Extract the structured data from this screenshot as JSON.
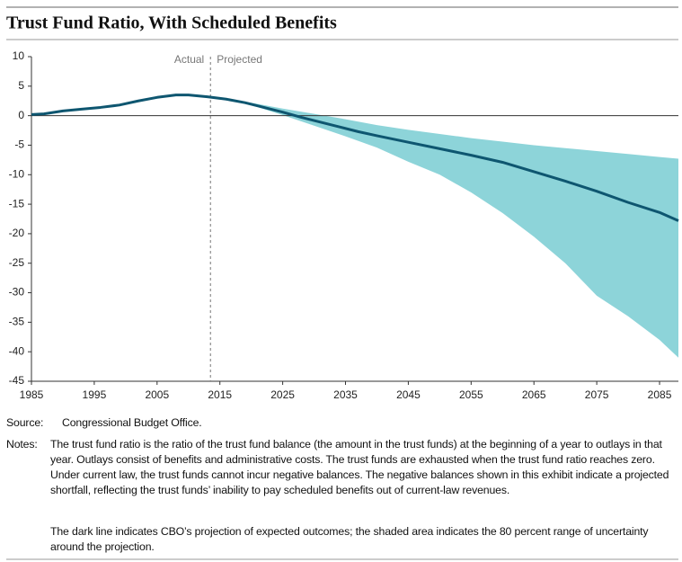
{
  "chart_data": {
    "type": "line",
    "title": "Trust Fund Ratio, With Scheduled Benefits",
    "actual_label": "Actual",
    "projected_label": "Projected",
    "projection_start": 2013.5,
    "xlim": [
      1985,
      2088
    ],
    "ylim": [
      -45,
      10
    ],
    "xticks": [
      1985,
      1995,
      2005,
      2015,
      2025,
      2035,
      2045,
      2055,
      2065,
      2075,
      2085
    ],
    "yticks": [
      10,
      5,
      0,
      -5,
      -10,
      -15,
      -20,
      -25,
      -30,
      -35,
      -40,
      -45
    ],
    "line": {
      "color": "#0e5670",
      "x": [
        1985,
        1987,
        1990,
        1993,
        1996,
        1999,
        2002,
        2005,
        2008,
        2010,
        2013,
        2016,
        2019,
        2022,
        2025,
        2028,
        2031,
        2034,
        2037,
        2040,
        2045,
        2050,
        2055,
        2060,
        2065,
        2070,
        2075,
        2080,
        2085,
        2088
      ],
      "values": [
        0.2,
        0.3,
        0.8,
        1.1,
        1.4,
        1.8,
        2.5,
        3.1,
        3.5,
        3.5,
        3.2,
        2.8,
        2.2,
        1.4,
        0.6,
        -0.3,
        -1.1,
        -1.9,
        -2.7,
        -3.4,
        -4.5,
        -5.6,
        -6.7,
        -7.9,
        -9.5,
        -11.1,
        -12.8,
        -14.7,
        -16.4,
        -17.8
      ]
    },
    "band": {
      "color": "#8dd4d9",
      "x": [
        2014,
        2020,
        2025,
        2030,
        2035,
        2040,
        2045,
        2050,
        2055,
        2060,
        2065,
        2070,
        2075,
        2080,
        2085,
        2088
      ],
      "upper": [
        3.1,
        2.2,
        1.2,
        0.3,
        -0.6,
        -1.6,
        -2.4,
        -3.1,
        -3.8,
        -4.4,
        -5.0,
        -5.5,
        -6.0,
        -6.5,
        -7.0,
        -7.3
      ],
      "lower": [
        3.1,
        1.8,
        0.1,
        -1.7,
        -3.5,
        -5.4,
        -7.8,
        -10.0,
        -13.0,
        -16.5,
        -20.5,
        -25.0,
        -30.5,
        -34.0,
        -38.0,
        -41.0
      ]
    },
    "source_label": "Source:",
    "source": "Congressional Budget Office.",
    "notes_label": "Notes:",
    "notes": [
      "The trust fund ratio is the ratio of the trust fund balance (the amount in the trust funds) at the beginning of a year to outlays in that year. Outlays consist of benefits and administrative costs. The trust funds are exhausted when the trust fund ratio reaches zero. Under current law, the trust funds cannot incur negative balances. The negative balances shown in this exhibit indicate a projected shortfall, reflecting the trust funds’ inability to pay scheduled benefits out of current-law revenues.",
      "The dark line indicates CBO’s projection of expected outcomes; the shaded area indicates the 80 percent range of uncertainty around the projection."
    ]
  }
}
